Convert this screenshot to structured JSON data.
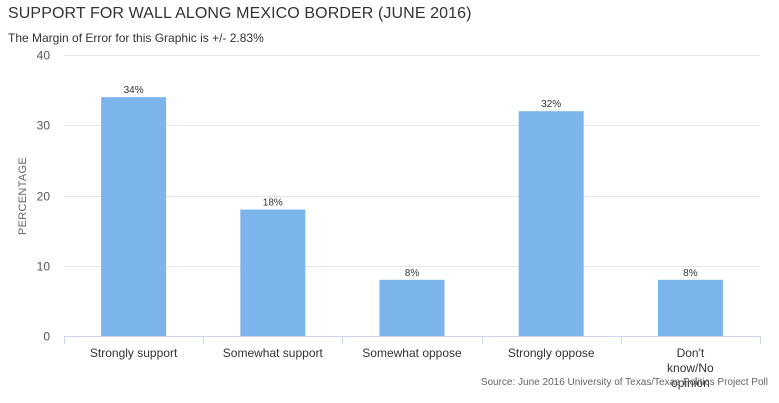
{
  "header": {
    "title": "SUPPORT FOR WALL ALONG MEXICO BORDER (JUNE 2016)",
    "subtitle": "The Margin of Error for this Graphic is +/- 2.83%"
  },
  "footer": {
    "source": "Source: June 2016 University of Texas/Texas Politics Project Poll"
  },
  "colors": {
    "bar": "#7cb5ec",
    "grid": "#e6e6e6",
    "axis": "#ccd6eb",
    "text": "#333333"
  },
  "chart_data": {
    "type": "bar",
    "title": "SUPPORT FOR WALL ALONG MEXICO BORDER (JUNE 2016)",
    "xlabel": "",
    "ylabel": "PERCENTAGE",
    "categories": [
      "Strongly support",
      "Somewhat support",
      "Somewhat oppose",
      "Strongly oppose",
      "Don't know/No opinion"
    ],
    "values": [
      34,
      18,
      8,
      32,
      8
    ],
    "data_labels": [
      "34%",
      "18%",
      "8%",
      "32%",
      "8%"
    ],
    "ylim": [
      0,
      40
    ],
    "yticks": [
      0,
      10,
      20,
      30,
      40
    ],
    "grid": true,
    "legend": "none"
  }
}
